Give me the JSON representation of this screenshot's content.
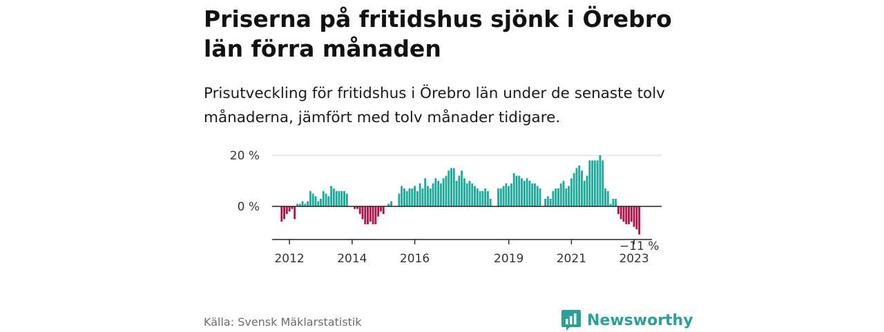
{
  "header": {
    "title": "Priserna på fritidshus sjönk i Örebro län förra månaden",
    "subtitle": "Prisutveckling för fritidshus i Örebro län under de senaste tolv månaderna, jämfört med tolv månader tidigare."
  },
  "footer": {
    "source": "Källa: Svensk Mäklarstatistik",
    "brand": "Newsworthy"
  },
  "chart_data": {
    "type": "bar",
    "ylim": [
      -12,
      20
    ],
    "y_ticks": [
      {
        "value": 20,
        "label": "20 %"
      },
      {
        "value": 0,
        "label": "0 %"
      }
    ],
    "x_ticks": [
      {
        "label": "2012",
        "index": 6
      },
      {
        "label": "2014",
        "index": 30
      },
      {
        "label": "2016",
        "index": 54
      },
      {
        "label": "2019",
        "index": 90
      },
      {
        "label": "2021",
        "index": 114
      },
      {
        "label": "2023",
        "index": 138
      }
    ],
    "values": [
      0,
      0,
      0,
      -6,
      -5,
      -3,
      -2,
      -1,
      -5,
      1,
      1,
      2,
      1,
      2,
      6,
      5,
      4,
      2,
      3,
      6,
      5,
      4,
      8,
      7,
      6,
      6,
      6,
      6,
      5,
      0,
      0,
      -1,
      -1,
      -3,
      -5,
      -7,
      -7,
      -6,
      -7,
      -7,
      -4,
      -2,
      -3,
      0,
      1,
      2,
      0,
      0,
      5,
      8,
      7,
      6,
      7,
      7,
      8,
      6,
      9,
      7,
      11,
      8,
      7,
      9,
      11,
      10,
      9,
      11,
      12,
      14,
      15,
      15,
      10,
      12,
      14,
      11,
      9,
      10,
      9,
      8,
      7,
      6,
      6,
      7,
      6,
      3,
      0,
      0,
      7,
      7,
      8,
      9,
      8,
      9,
      13,
      12,
      12,
      11,
      10,
      11,
      10,
      9,
      9,
      8,
      7,
      0,
      3,
      4,
      3,
      6,
      7,
      7,
      9,
      10,
      7,
      8,
      11,
      13,
      15,
      16,
      14,
      10,
      12,
      18,
      18,
      18,
      18,
      20,
      18,
      7,
      6,
      1,
      3,
      3,
      -3,
      -5,
      -6,
      -7,
      -7,
      -6,
      -8,
      -9,
      -11
    ],
    "end_label": "−11 %",
    "colors": {
      "positive": "#1faa9b",
      "negative": "#b0154a",
      "axis": "#222222",
      "grid": "#dddddd",
      "brand": "#2aa198"
    }
  }
}
